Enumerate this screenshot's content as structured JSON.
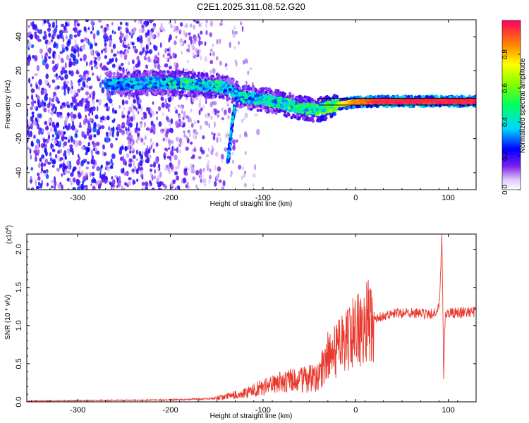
{
  "title": "C2E1.2025.311.08.52.G20",
  "chart_data": [
    {
      "type": "heatmap",
      "xlabel": "Height of straight line (km)",
      "ylabel": "Frequency (Hz)",
      "xlim": [
        -355,
        130
      ],
      "ylim": [
        -50,
        50
      ],
      "xticks": [
        -300,
        -200,
        -100,
        0,
        100
      ],
      "yticks": [
        -40,
        -20,
        0,
        20,
        40
      ],
      "colorbar": {
        "label": "Normalized spectral amplitude",
        "range": [
          0,
          1
        ],
        "ticks": [
          "0.0",
          "0.2",
          "0.4",
          "0.6",
          "0.8"
        ],
        "tick_values": [
          0,
          0.2,
          0.4,
          0.6,
          0.8
        ]
      },
      "ridge": [
        {
          "x": -270,
          "y": 12,
          "a": 0.35
        },
        {
          "x": -250,
          "y": 12,
          "a": 0.38
        },
        {
          "x": -220,
          "y": 13,
          "a": 0.4
        },
        {
          "x": -180,
          "y": 12,
          "a": 0.45
        },
        {
          "x": -150,
          "y": 11,
          "a": 0.45
        },
        {
          "x": -135,
          "y": 9,
          "a": 0.4
        },
        {
          "x": -125,
          "y": 5,
          "a": 0.42
        },
        {
          "x": -100,
          "y": 3,
          "a": 0.45
        },
        {
          "x": -80,
          "y": 1,
          "a": 0.5
        },
        {
          "x": -60,
          "y": -2,
          "a": 0.5
        },
        {
          "x": -40,
          "y": -3,
          "a": 0.55
        },
        {
          "x": -20,
          "y": 0,
          "a": 0.7
        },
        {
          "x": 0,
          "y": 1.5,
          "a": 0.85
        },
        {
          "x": 20,
          "y": 2,
          "a": 0.95
        },
        {
          "x": 60,
          "y": 2,
          "a": 0.97
        },
        {
          "x": 90,
          "y": 2,
          "a": 0.95
        },
        {
          "x": 130,
          "y": 2,
          "a": 0.97
        }
      ],
      "branch": [
        {
          "x": -130,
          "y": 0,
          "a": 0.45
        },
        {
          "x": -133,
          "y": -10,
          "a": 0.4
        },
        {
          "x": -135,
          "y": -20,
          "a": 0.38
        },
        {
          "x": -137,
          "y": -30,
          "a": 0.35
        },
        {
          "x": -138,
          "y": -34,
          "a": 0.3
        }
      ]
    },
    {
      "type": "line",
      "xlabel": "Height of straight line (km)",
      "ylabel": "SNR (10 * v/v)",
      "yscale_label": "(x10",
      "yscale_exp": "4",
      "xlim": [
        -355,
        130
      ],
      "ylim": [
        0,
        22000
      ],
      "xticks": [
        -300,
        -200,
        -100,
        0,
        100
      ],
      "yticks": [
        0,
        5000,
        10000,
        15000,
        20000
      ],
      "ytick_labels": [
        "0.0",
        "0.5",
        "1.0",
        "1.5",
        "2.0"
      ],
      "color": "#e8392f",
      "series": [
        {
          "x": [
            -355,
            -300,
            -250,
            -200,
            -160,
            -140,
            -120,
            -100,
            -80,
            -60,
            -40,
            -30,
            -20,
            -10,
            0,
            10,
            20,
            30,
            40,
            60,
            80,
            88,
            90,
            92,
            93,
            94,
            95,
            96,
            97,
            100,
            110,
            130
          ],
          "y": [
            100,
            150,
            200,
            250,
            400,
            700,
            1200,
            1900,
            2600,
            2800,
            3200,
            6000,
            7000,
            8500,
            9000,
            10000,
            11000,
            11200,
            11600,
            11700,
            11500,
            11800,
            12500,
            18000,
            22000,
            14000,
            3000,
            9000,
            11300,
            11600,
            11700,
            11800
          ]
        }
      ]
    }
  ]
}
